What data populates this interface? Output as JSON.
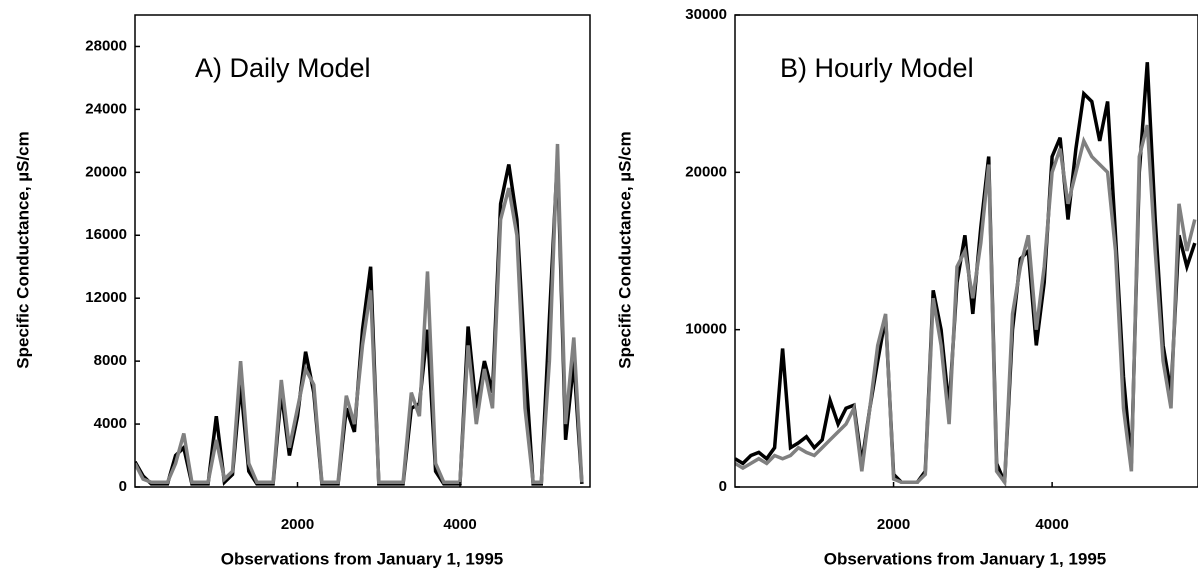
{
  "chart_data": [
    {
      "type": "line",
      "title": "A) Daily Model",
      "xlabel": "Observations from January 1, 1995",
      "ylabel": "Specific Conductance, µS/cm",
      "x": [
        0,
        100,
        200,
        300,
        400,
        500,
        600,
        700,
        800,
        900,
        1000,
        1100,
        1200,
        1300,
        1400,
        1500,
        1600,
        1700,
        1800,
        1900,
        2000,
        2100,
        2200,
        2300,
        2400,
        2500,
        2600,
        2700,
        2800,
        2900,
        3000,
        3100,
        3200,
        3300,
        3400,
        3500,
        3600,
        3700,
        3800,
        3900,
        4000,
        4100,
        4200,
        4300,
        4400,
        4500,
        4600,
        4700,
        4800,
        4900,
        5000,
        5100,
        5200,
        5300,
        5400,
        5500
      ],
      "series": [
        {
          "color": "#000000",
          "values": [
            1600,
            700,
            200,
            200,
            200,
            2000,
            2500,
            200,
            200,
            200,
            4500,
            300,
            800,
            6500,
            1000,
            200,
            200,
            200,
            6000,
            2000,
            4500,
            8600,
            6000,
            200,
            200,
            200,
            5000,
            3500,
            10000,
            14000,
            200,
            200,
            200,
            200,
            5000,
            5300,
            10000,
            1000,
            200,
            200,
            200,
            10200,
            5000,
            8000,
            6000,
            18000,
            20500,
            17000,
            8000,
            200,
            200,
            10700,
            21000,
            3000,
            8000,
            200
          ]
        },
        {
          "color": "#808080",
          "values": [
            1500,
            500,
            300,
            300,
            300,
            1500,
            3400,
            300,
            300,
            300,
            3000,
            500,
            1000,
            8000,
            1500,
            300,
            300,
            300,
            6800,
            2500,
            5000,
            7500,
            6500,
            300,
            300,
            300,
            5800,
            4000,
            9000,
            12500,
            300,
            300,
            300,
            300,
            6000,
            4500,
            13700,
            1500,
            300,
            300,
            300,
            9000,
            4000,
            7500,
            5000,
            17000,
            19000,
            16000,
            5000,
            300,
            300,
            8000,
            21800,
            4000,
            9500,
            300
          ]
        }
      ],
      "xlim": [
        0,
        5600
      ],
      "ylim": [
        0,
        30000
      ],
      "xticks": [
        2000,
        4000
      ],
      "yticks": [
        0,
        4000,
        8000,
        12000,
        16000,
        20000,
        24000,
        28000
      ]
    },
    {
      "type": "line",
      "title": "B) Hourly Model",
      "xlabel": "Observations from January 1, 1995",
      "ylabel": "Specific Conductance, µS/cm",
      "x": [
        0,
        100,
        200,
        300,
        400,
        500,
        600,
        700,
        800,
        900,
        1000,
        1100,
        1200,
        1300,
        1400,
        1500,
        1600,
        1700,
        1800,
        1900,
        2000,
        2100,
        2200,
        2300,
        2400,
        2500,
        2600,
        2700,
        2800,
        2900,
        3000,
        3100,
        3200,
        3300,
        3400,
        3500,
        3600,
        3700,
        3800,
        3900,
        4000,
        4100,
        4200,
        4300,
        4400,
        4500,
        4600,
        4700,
        4800,
        4900,
        5000,
        5100,
        5200,
        5300,
        5400,
        5500,
        5600,
        5700,
        5800
      ],
      "series": [
        {
          "color": "#000000",
          "values": [
            1800,
            1500,
            2000,
            2200,
            1800,
            2500,
            8800,
            2500,
            2800,
            3200,
            2500,
            3000,
            5500,
            4000,
            5000,
            5200,
            1500,
            5000,
            8000,
            10800,
            800,
            300,
            300,
            300,
            1000,
            12500,
            10000,
            5000,
            13000,
            16000,
            11000,
            16500,
            21000,
            1500,
            300,
            10000,
            14500,
            15000,
            9000,
            13000,
            21000,
            22200,
            17000,
            21500,
            25000,
            24500,
            22000,
            24500,
            16000,
            7000,
            1500,
            20000,
            27000,
            17000,
            9000,
            6000,
            16000,
            14000,
            15500
          ]
        },
        {
          "color": "#808080",
          "values": [
            1500,
            1200,
            1500,
            1800,
            1500,
            2000,
            1800,
            2000,
            2500,
            2200,
            2000,
            2500,
            3000,
            3500,
            4000,
            5000,
            1000,
            5000,
            9000,
            11000,
            500,
            300,
            300,
            300,
            800,
            12000,
            9000,
            4000,
            14000,
            15000,
            12000,
            15500,
            20500,
            1000,
            300,
            11000,
            14000,
            16000,
            10000,
            14000,
            20000,
            21500,
            18000,
            20000,
            22000,
            21000,
            20500,
            20000,
            15000,
            5000,
            1000,
            21000,
            23000,
            15000,
            8000,
            5000,
            18000,
            15000,
            17000
          ]
        }
      ],
      "xlim": [
        0,
        5840
      ],
      "ylim": [
        0,
        30000
      ],
      "xticks": [
        2000,
        4000
      ],
      "yticks": [
        0,
        10000,
        20000,
        30000
      ]
    }
  ]
}
